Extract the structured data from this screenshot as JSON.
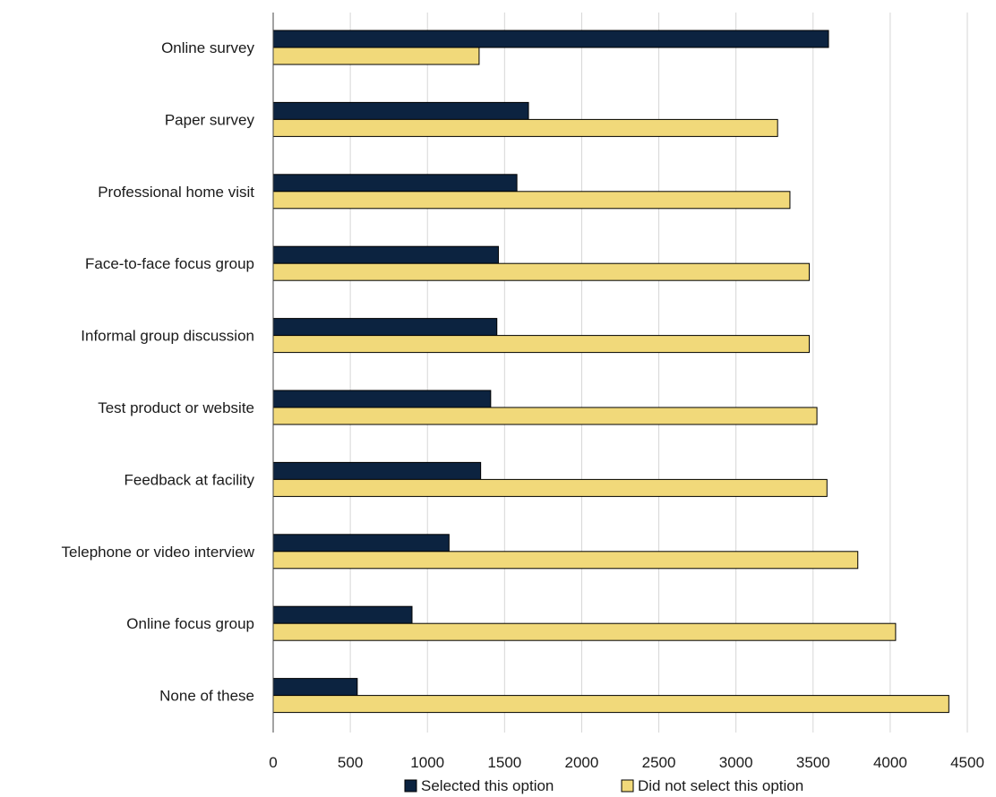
{
  "chart_data": {
    "type": "bar",
    "orientation": "horizontal",
    "title": "",
    "xlabel": "",
    "ylabel": "",
    "categories": [
      "Online survey",
      "Paper survey",
      "Professional home visit",
      "Face-to-face focus group",
      "Informal group discussion",
      "Test product or website",
      "Feedback at facility",
      "Telephone or video interview",
      "Online focus group",
      "None of these"
    ],
    "series": [
      {
        "name": "Selected this option",
        "color": "#0c2340",
        "values": [
          3600,
          1655,
          1580,
          1460,
          1450,
          1410,
          1345,
          1140,
          900,
          545
        ]
      },
      {
        "name": "Did not select this option",
        "color": "#f1d97a",
        "values": [
          1335,
          3270,
          3350,
          3475,
          3475,
          3525,
          3590,
          3790,
          4035,
          4380
        ]
      }
    ],
    "xlim": [
      0,
      4500
    ],
    "xticks": [
      0,
      500,
      1000,
      1500,
      2000,
      2500,
      3000,
      3500,
      4000,
      4500
    ],
    "grid": true,
    "legend_position": "bottom"
  }
}
